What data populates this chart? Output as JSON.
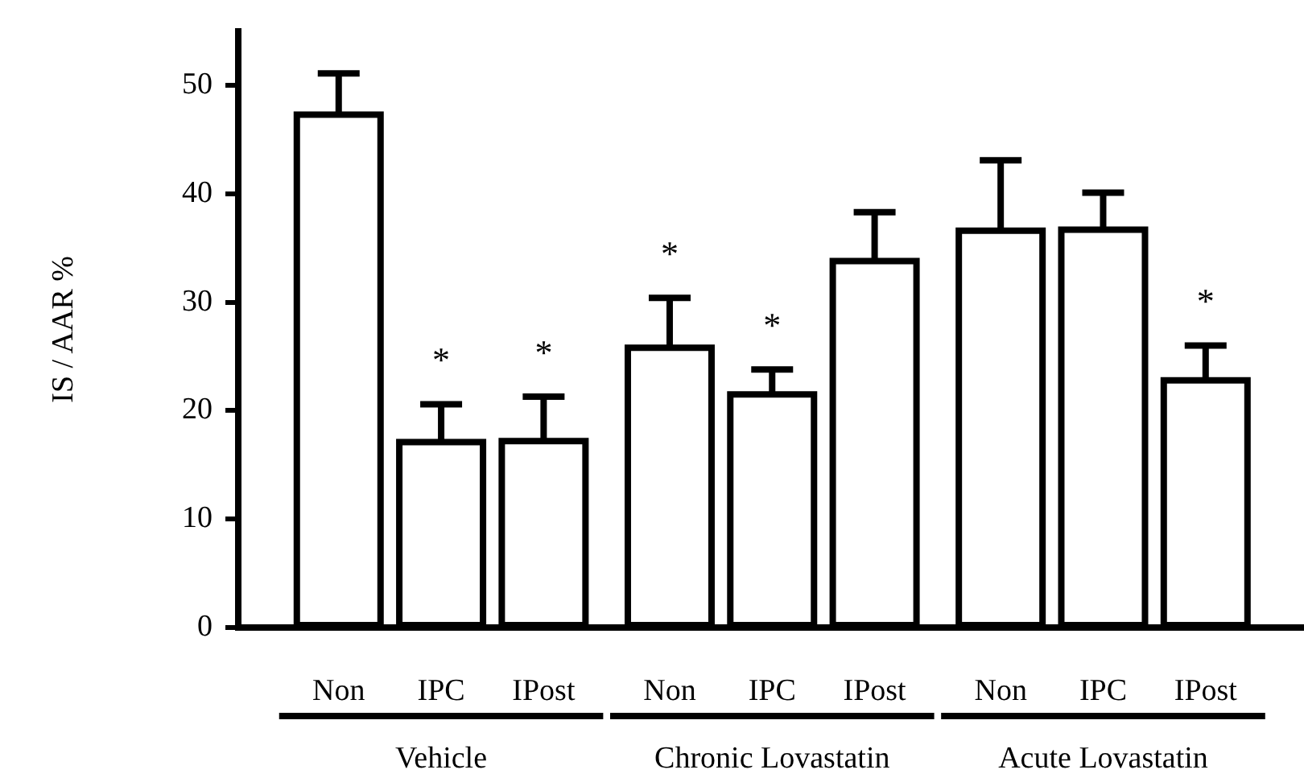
{
  "chart_data": {
    "type": "bar",
    "ylabel": "IS / AAR %",
    "categories": [
      "Non",
      "IPC",
      "IPost",
      "Non",
      "IPC",
      "IPost",
      "Non",
      "IPC",
      "IPost"
    ],
    "values": [
      47.3,
      17.1,
      17.2,
      25.8,
      21.5,
      33.8,
      36.6,
      36.7,
      22.8
    ],
    "errors": [
      [
        47.3,
        51.1
      ],
      [
        17.1,
        20.6
      ],
      [
        17.2,
        21.3
      ],
      [
        25.8,
        30.4
      ],
      [
        21.5,
        23.8
      ],
      [
        33.8,
        38.3
      ],
      [
        36.6,
        43.1
      ],
      [
        36.7,
        40.1
      ],
      [
        22.8,
        26.0
      ]
    ],
    "color": "#000000",
    "value_labels": [
      null,
      "*",
      "*",
      "*",
      "*",
      null,
      null,
      null,
      "*"
    ],
    "ylim": [
      0,
      55
    ],
    "yticks": [
      0,
      10,
      20,
      30,
      40,
      50
    ],
    "grid": false,
    "legend": false,
    "annotations": [
      "Vehicle",
      "Chronic Lovastatin",
      "Acute Lovastatin"
    ]
  }
}
